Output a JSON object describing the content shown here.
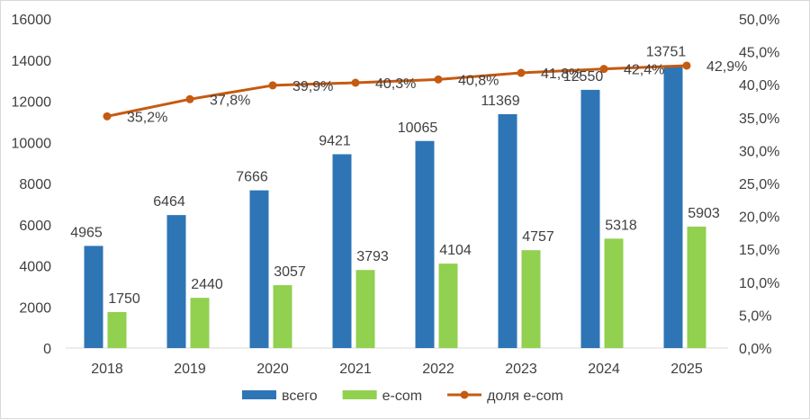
{
  "chart_data": {
    "type": "bar",
    "categories": [
      "2018",
      "2019",
      "2020",
      "2021",
      "2022",
      "2023",
      "2024",
      "2025"
    ],
    "series": [
      {
        "name": "всего",
        "type": "bar",
        "axis": "left",
        "color": "#2e75b6",
        "values": [
          4965,
          6464,
          7666,
          9421,
          10065,
          11369,
          12550,
          13751
        ],
        "labels": [
          "4965",
          "6464",
          "7666",
          "9421",
          "10065",
          "11369",
          "12550",
          "13751"
        ]
      },
      {
        "name": "e-com",
        "type": "bar",
        "axis": "left",
        "color": "#92d050",
        "values": [
          1750,
          2440,
          3057,
          3793,
          4104,
          4757,
          5318,
          5903
        ],
        "labels": [
          "1750",
          "2440",
          "3057",
          "3793",
          "4104",
          "4757",
          "5318",
          "5903"
        ]
      },
      {
        "name": "доля e-com",
        "type": "line",
        "axis": "right",
        "color": "#c55a11",
        "values": [
          35.2,
          37.8,
          39.9,
          40.3,
          40.8,
          41.8,
          42.4,
          42.9
        ],
        "labels": [
          "35,2%",
          "37,8%",
          "39,9%",
          "40,3%",
          "40,8%",
          "41,8%",
          "42,4%",
          "42,9%"
        ]
      }
    ],
    "y_left": {
      "lim": [
        0,
        16000
      ],
      "ticks": [
        "0",
        "2000",
        "4000",
        "6000",
        "8000",
        "10000",
        "12000",
        "14000",
        "16000"
      ]
    },
    "y_right": {
      "lim": [
        0,
        50
      ],
      "ticks": [
        "0,0%",
        "5,0%",
        "10,0%",
        "15,0%",
        "20,0%",
        "25,0%",
        "30,0%",
        "35,0%",
        "40,0%",
        "45,0%",
        "50,0%"
      ]
    },
    "grid": false,
    "legend_position": "bottom"
  }
}
